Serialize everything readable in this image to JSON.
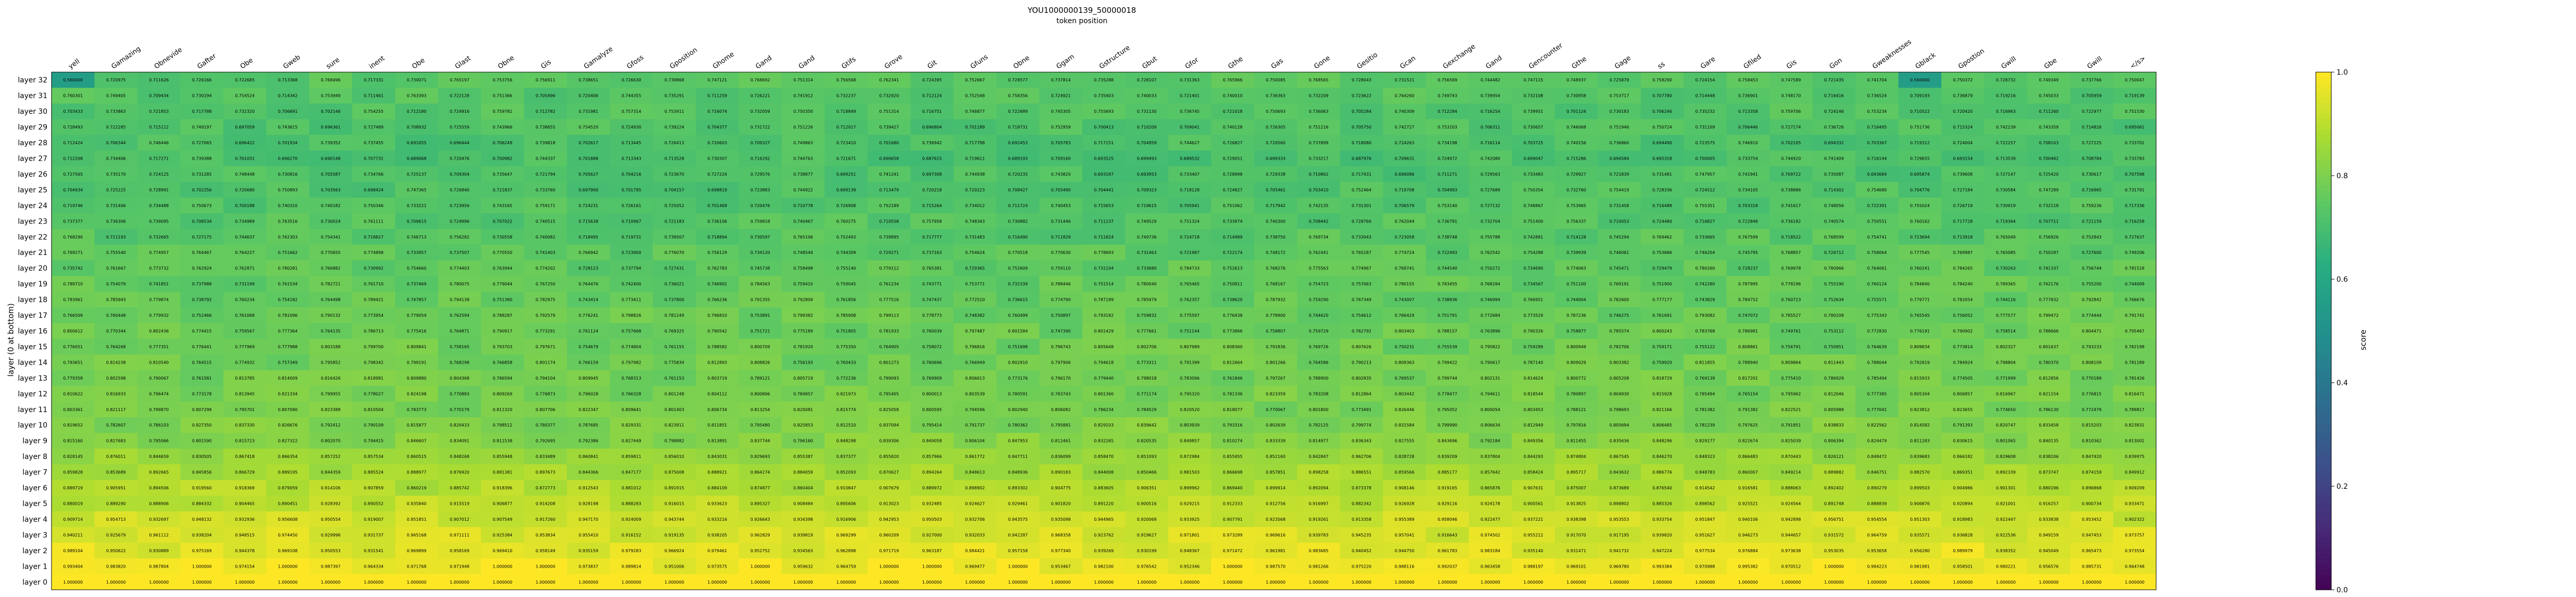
{
  "chart_data": {
    "type": "heatmap",
    "title": "YOU1000000139_50000018",
    "subtitle": "token position",
    "ylabel": "layer (0 at bottom)",
    "colorbar_label": "score",
    "colorbar_range": [
      0.0,
      1.0
    ],
    "colorbar_ticks": [
      "0.0",
      "0.2",
      "0.4",
      "0.6",
      "0.8",
      "1.0"
    ],
    "colormap": "viridis",
    "x_tokens": [
      "yell",
      "Gamazing",
      "Obnevide",
      "Gafter",
      "Obe",
      "Gweb",
      "sure",
      "inent",
      "Obe",
      "Glast",
      "Obne",
      "Gis",
      "Gamalyze",
      "Gfoss",
      "Gposition",
      "Ghome",
      "Gand",
      "Gand",
      "Gtifs",
      "Grove",
      "Git",
      "Gfuns",
      "Obne",
      "Ggam",
      "Gstructure",
      "Gbut",
      "Gfor",
      "Gthe",
      "Gas",
      "Gone",
      "Gesitio",
      "Gcan",
      "Gexchange",
      "Gand",
      "Gencounter",
      "Gthe",
      "Gage",
      "ss",
      "Gare",
      "Gfiled",
      "Gis",
      "Gon",
      "Gweaknesses",
      "Gblack",
      "Gpostion",
      "Gwill",
      "Gbe",
      "Gwill",
      "</s>"
    ],
    "y_layers": [
      "layer 32",
      "layer 31",
      "layer 30",
      "layer 29",
      "layer 28",
      "layer 27",
      "layer 26",
      "layer 25",
      "layer 24",
      "layer 23",
      "layer 22",
      "layer 21",
      "layer 20",
      "layer 19",
      "layer 18",
      "layer 17",
      "layer 16",
      "layer 15",
      "layer 14",
      "layer 13",
      "layer 12",
      "layer 11",
      "layer 10",
      "layer 9",
      "layer 8",
      "layer 7",
      "layer 6",
      "layer 5",
      "layer 4",
      "layer 3",
      "layer 2",
      "layer 1",
      "layer 0"
    ],
    "row_base": [
      0.74,
      0.735,
      0.73,
      0.725,
      0.72,
      0.715,
      0.72,
      0.725,
      0.73,
      0.735,
      0.74,
      0.75,
      0.755,
      0.76,
      0.765,
      0.77,
      0.775,
      0.78,
      0.785,
      0.79,
      0.795,
      0.8,
      0.81,
      0.82,
      0.85,
      0.87,
      0.89,
      0.91,
      0.93,
      0.945,
      0.96,
      0.98,
      1.0
    ],
    "cell_label_format": "7 significant digits",
    "highlighted_cells": [
      "layer 32 / yell",
      "layer 32 / Gblack"
    ]
  }
}
